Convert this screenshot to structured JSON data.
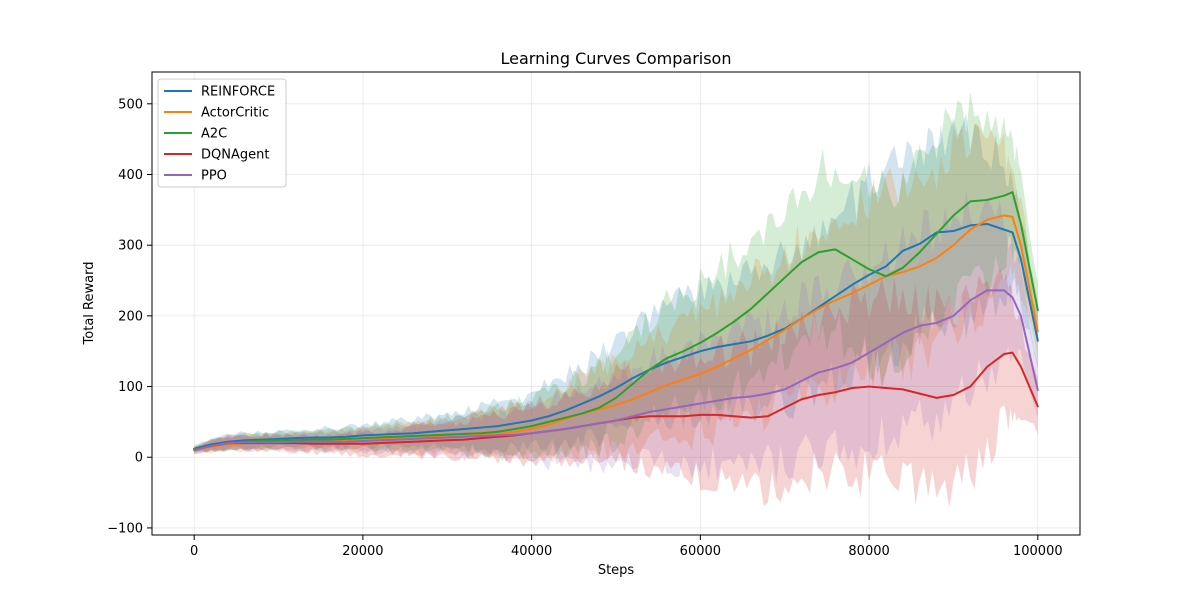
{
  "chart_data": {
    "type": "line",
    "title": "Learning Curves Comparison",
    "xlabel": "Steps",
    "ylabel": "Total Reward",
    "xlim": [
      -5000,
      105000
    ],
    "ylim": [
      -110,
      545
    ],
    "x_ticks": [
      0,
      20000,
      40000,
      60000,
      80000,
      100000
    ],
    "x_tick_labels": [
      "0",
      "20000",
      "40000",
      "60000",
      "80000",
      "100000"
    ],
    "y_ticks": [
      -100,
      0,
      100,
      200,
      300,
      400,
      500
    ],
    "y_tick_labels": [
      "−100",
      "0",
      "100",
      "200",
      "300",
      "400",
      "500"
    ],
    "grid": true,
    "legend_position": "upper-left",
    "x": [
      0,
      2000,
      4000,
      6000,
      8000,
      10000,
      12000,
      14000,
      16000,
      18000,
      20000,
      22000,
      24000,
      26000,
      28000,
      30000,
      32000,
      34000,
      36000,
      38000,
      40000,
      42000,
      44000,
      46000,
      48000,
      50000,
      52000,
      54000,
      56000,
      58000,
      60000,
      62000,
      64000,
      66000,
      68000,
      70000,
      72000,
      74000,
      76000,
      78000,
      80000,
      82000,
      84000,
      86000,
      88000,
      90000,
      92000,
      94000,
      96000,
      97000,
      98000,
      100000
    ],
    "series": [
      {
        "name": "REINFORCE",
        "color": "#1f77b4",
        "values": [
          12,
          18,
          22,
          24,
          25,
          26,
          27,
          28,
          28,
          29,
          31,
          32,
          33,
          34,
          36,
          38,
          40,
          42,
          44,
          48,
          52,
          58,
          66,
          76,
          86,
          98,
          112,
          124,
          134,
          142,
          150,
          156,
          160,
          164,
          172,
          182,
          196,
          212,
          228,
          244,
          258,
          270,
          292,
          302,
          318,
          320,
          328,
          330,
          322,
          318,
          280,
          165
        ],
        "band": [
          6,
          10,
          12,
          14,
          14,
          14,
          15,
          16,
          17,
          18,
          20,
          22,
          24,
          26,
          28,
          30,
          34,
          38,
          42,
          46,
          50,
          56,
          62,
          68,
          74,
          80,
          86,
          92,
          98,
          104,
          110,
          115,
          120,
          125,
          130,
          135,
          140,
          145,
          150,
          155,
          160,
          162,
          164,
          166,
          168,
          170,
          165,
          150,
          120,
          100,
          80,
          40
        ]
      },
      {
        "name": "ActorCritic",
        "color": "#ff7f0e",
        "values": [
          10,
          15,
          18,
          20,
          21,
          22,
          22,
          23,
          23,
          24,
          25,
          26,
          27,
          28,
          29,
          30,
          31,
          32,
          33,
          36,
          40,
          46,
          54,
          62,
          68,
          74,
          82,
          92,
          102,
          110,
          118,
          128,
          140,
          152,
          166,
          180,
          196,
          210,
          222,
          232,
          244,
          256,
          262,
          270,
          282,
          300,
          322,
          336,
          342,
          340,
          300,
          178
        ],
        "band": [
          6,
          10,
          12,
          14,
          14,
          14,
          15,
          16,
          17,
          18,
          20,
          22,
          24,
          26,
          28,
          30,
          34,
          38,
          42,
          46,
          50,
          56,
          62,
          68,
          74,
          80,
          86,
          92,
          98,
          104,
          110,
          115,
          120,
          125,
          130,
          135,
          140,
          145,
          150,
          155,
          160,
          162,
          164,
          166,
          168,
          170,
          165,
          150,
          120,
          100,
          80,
          40
        ]
      },
      {
        "name": "A2C",
        "color": "#2ca02c",
        "values": [
          11,
          16,
          20,
          22,
          23,
          24,
          24,
          25,
          25,
          26,
          27,
          28,
          29,
          30,
          31,
          32,
          33,
          34,
          36,
          40,
          44,
          50,
          56,
          62,
          70,
          84,
          104,
          124,
          140,
          150,
          162,
          176,
          192,
          210,
          232,
          254,
          276,
          290,
          294,
          280,
          266,
          256,
          268,
          290,
          316,
          342,
          362,
          364,
          370,
          375,
          330,
          208
        ],
        "band": [
          6,
          10,
          12,
          14,
          14,
          14,
          15,
          16,
          17,
          18,
          20,
          22,
          24,
          26,
          28,
          30,
          34,
          38,
          42,
          46,
          50,
          56,
          62,
          68,
          74,
          80,
          86,
          92,
          98,
          104,
          110,
          115,
          120,
          125,
          130,
          135,
          140,
          145,
          150,
          155,
          160,
          162,
          164,
          166,
          168,
          170,
          165,
          150,
          120,
          100,
          80,
          40
        ]
      },
      {
        "name": "DQNAgent",
        "color": "#d62728",
        "values": [
          10,
          16,
          20,
          20,
          20,
          20,
          20,
          19,
          19,
          19,
          19,
          20,
          21,
          22,
          23,
          24,
          25,
          27,
          29,
          31,
          34,
          37,
          40,
          44,
          48,
          52,
          56,
          58,
          58,
          58,
          60,
          60,
          58,
          56,
          58,
          70,
          82,
          88,
          92,
          98,
          100,
          98,
          96,
          90,
          84,
          88,
          100,
          128,
          146,
          148,
          128,
          72
        ],
        "band": [
          6,
          10,
          12,
          14,
          14,
          14,
          15,
          16,
          17,
          18,
          20,
          22,
          24,
          26,
          28,
          30,
          34,
          38,
          42,
          46,
          50,
          56,
          62,
          68,
          74,
          80,
          86,
          92,
          98,
          104,
          110,
          115,
          120,
          125,
          130,
          135,
          140,
          145,
          150,
          155,
          160,
          162,
          164,
          166,
          168,
          170,
          165,
          150,
          120,
          100,
          80,
          40
        ]
      },
      {
        "name": "PPO",
        "color": "#9467bd",
        "values": [
          10,
          16,
          20,
          21,
          21,
          21,
          22,
          22,
          22,
          22,
          23,
          24,
          25,
          26,
          27,
          28,
          29,
          30,
          31,
          32,
          34,
          37,
          40,
          44,
          48,
          52,
          58,
          64,
          68,
          72,
          76,
          80,
          84,
          86,
          90,
          96,
          108,
          120,
          126,
          134,
          148,
          162,
          176,
          186,
          190,
          200,
          222,
          236,
          236,
          226,
          200,
          95
        ],
        "band": [
          6,
          10,
          12,
          14,
          14,
          14,
          15,
          16,
          17,
          18,
          20,
          22,
          24,
          26,
          28,
          30,
          34,
          38,
          42,
          46,
          50,
          56,
          62,
          68,
          74,
          80,
          86,
          92,
          98,
          104,
          110,
          115,
          120,
          125,
          130,
          135,
          140,
          145,
          150,
          155,
          160,
          162,
          164,
          166,
          168,
          170,
          165,
          150,
          120,
          100,
          80,
          40
        ]
      }
    ]
  }
}
